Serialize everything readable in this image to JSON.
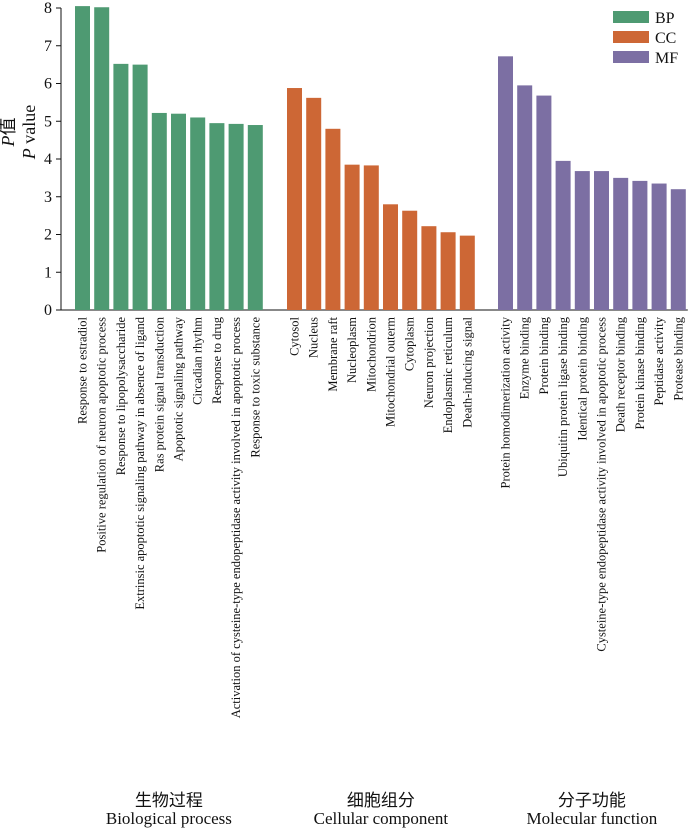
{
  "chart_data": {
    "type": "bar",
    "ylabel_cn": "P值",
    "ylabel_cn_italic_part": "P",
    "ylabel_cn_rest": "值",
    "ylabel_en": "P value",
    "ylabel_en_italic_part": "P",
    "ylabel_en_rest": " value",
    "ylim": [
      0,
      8
    ],
    "yticks": [
      "0",
      "1",
      "2",
      "3",
      "4",
      "5",
      "6",
      "7",
      "8"
    ],
    "series": [
      {
        "name": "BP",
        "color": "#4e9a72",
        "title_cn": "生物过程",
        "title_en": "Biological process",
        "categories": [
          "Response to estradiol",
          "Positive regulation of neuron apoptotic process",
          "Response to lipopolysaccharide",
          "Extrinsic apoptotic signaling pathway in absence of ligand",
          "Ras protein signal transduction",
          "Apoptotic signaling pathway",
          "Circadian rhythm",
          "Response to drug",
          "Activation of cysteine-type endopeptidase activity involved in apoptotic process",
          "Response to toxic substance"
        ],
        "values": [
          8.05,
          8.02,
          6.52,
          6.5,
          5.22,
          5.2,
          5.1,
          4.95,
          4.93,
          4.9
        ]
      },
      {
        "name": "CC",
        "color": "#cd6735",
        "title_cn": "细胞组分",
        "title_en": "Cellular component",
        "categories": [
          "Cytosol",
          "Nucleus",
          "Membrane raft",
          "Nucleoplasm",
          "Mitochondrion",
          "Mitochondrial outerm",
          "Cytoplasm",
          "Neuron projection",
          "Endoplasmic reticulum",
          "Death-inducing signal"
        ],
        "values": [
          5.88,
          5.62,
          4.8,
          3.85,
          3.83,
          2.8,
          2.63,
          2.22,
          2.06,
          1.97
        ]
      },
      {
        "name": "MF",
        "color": "#7c6fa3",
        "title_cn": "分子功能",
        "title_en": "Molecular function",
        "categories": [
          "Protein homodimerization activity",
          "Enzyme binding",
          "Protein binding",
          "Ubiquitin protein ligase binding",
          "Identical protein binding",
          "Cysteine-type endopeptidase activity involved in apoptotic process",
          "Death receptor binding",
          "Protein kinase binding",
          "Peptidase activity",
          "Protease binding"
        ],
        "values": [
          6.72,
          5.95,
          5.68,
          3.95,
          3.68,
          3.68,
          3.5,
          3.42,
          3.35,
          3.2
        ]
      }
    ],
    "legend": [
      "BP",
      "CC",
      "MF"
    ],
    "legend_position": "top-right"
  }
}
